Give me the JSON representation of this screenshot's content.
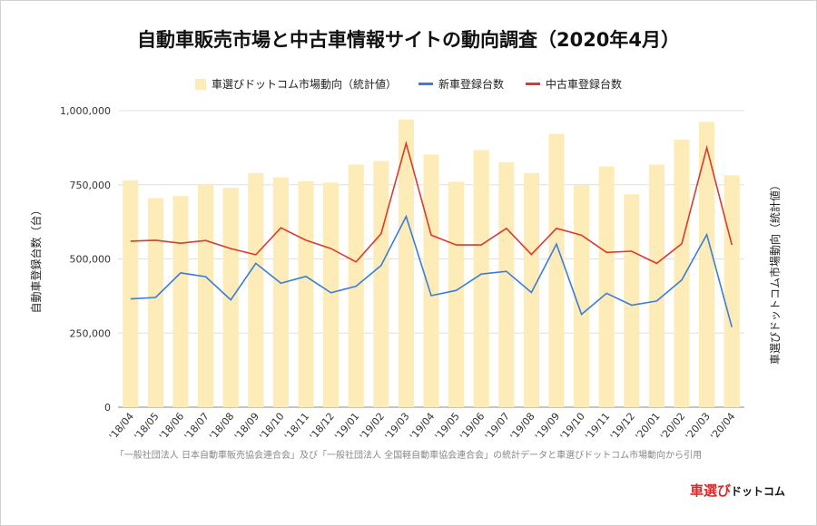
{
  "chart_data": {
    "type": "bar",
    "title": "自動車販売市場と中古車情報サイトの動向調査（2020年4月）",
    "categories": [
      "'18/04",
      "'18/05",
      "'18/06",
      "'18/07",
      "'18/08",
      "'18/09",
      "'18/10",
      "'18/11",
      "'18/12",
      "'19/01",
      "'19/02",
      "'19/03",
      "'19/04",
      "'19/05",
      "'19/06",
      "'19/07",
      "'19/08",
      "'19/09",
      "'19/10",
      "'19/11",
      "'19/12",
      "'20/01",
      "'20/02",
      "'20/03",
      "'20/04"
    ],
    "series": [
      {
        "name": "車選びドットコム市場動向（統計値）",
        "kind": "bar",
        "axis": "right",
        "color": "#fdebb8",
        "values": [
          765000,
          705000,
          712000,
          752000,
          740000,
          790000,
          775000,
          762000,
          757000,
          818000,
          830000,
          970000,
          852000,
          760000,
          867000,
          826000,
          790000,
          922000,
          748000,
          812000,
          718000,
          818000,
          902000,
          962000,
          782000
        ]
      },
      {
        "name": "新車登録台数",
        "kind": "line",
        "axis": "left",
        "color": "#3b7ddd",
        "values": [
          365000,
          370000,
          453000,
          440000,
          362000,
          485000,
          418000,
          441000,
          386000,
          408000,
          478000,
          643000,
          376000,
          394000,
          449000,
          458000,
          387000,
          550000,
          313000,
          384000,
          344000,
          358000,
          429000,
          582000,
          270000
        ]
      },
      {
        "name": "中古車登録台数",
        "kind": "line",
        "axis": "left",
        "color": "#d93b2f",
        "values": [
          560000,
          563000,
          553000,
          562000,
          535000,
          514000,
          605000,
          563000,
          535000,
          490000,
          585000,
          890000,
          580000,
          547000,
          547000,
          603000,
          515000,
          603000,
          580000,
          522000,
          526000,
          485000,
          551000,
          875000,
          547000
        ]
      }
    ],
    "ylabel": "自動車登録台数（台）",
    "ylabel_right": "車選びドットコム市場動向（統計値）",
    "ylim": [
      0,
      1000000
    ],
    "yticks": [
      "0",
      "250,000",
      "500,000",
      "750,000",
      "1,000,000"
    ],
    "ytick_values": [
      0,
      250000,
      500000,
      750000,
      1000000
    ],
    "grid": true,
    "legend_position": "top-center"
  },
  "footnote": "「一般社団法人 日本自動車販売協会連合会」及び「一般社団法人 全国軽自動車協会連合会」の統計データと車選びドットコム市場動向から引用",
  "logo": {
    "part1": "車選び",
    "part2": "ドットコム"
  }
}
